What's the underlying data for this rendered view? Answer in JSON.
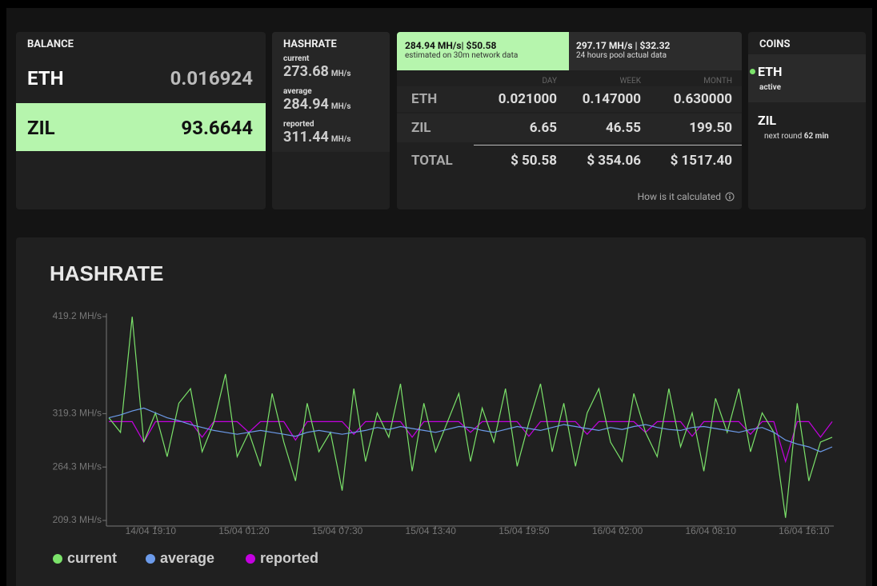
{
  "balance": {
    "title": "BALANCE",
    "rows": [
      {
        "coin": "ETH",
        "value": "0.016924"
      },
      {
        "coin": "ZIL",
        "value": "93.6644"
      }
    ]
  },
  "hashrate": {
    "title": "HASHRATE",
    "items": [
      {
        "label": "current",
        "value": "273.68",
        "unit": "MH/s"
      },
      {
        "label": "average",
        "value": "284.94",
        "unit": "MH/s"
      },
      {
        "label": "reported",
        "value": "311.44",
        "unit": "MH/s"
      }
    ]
  },
  "earnings": {
    "tabs": [
      {
        "title": "284.94 MH/s| $50.58",
        "subtitle": "estimated on 30m network data"
      },
      {
        "title": "297.17 MH/s | $32.32",
        "subtitle": "24 hours pool actual data"
      }
    ],
    "columns": [
      "DAY",
      "WEEK",
      "MONTH"
    ],
    "rows": [
      [
        "ETH",
        "0.021000",
        "0.147000",
        "0.630000"
      ],
      [
        "ZIL",
        "6.65",
        "46.55",
        "199.50"
      ],
      [
        "TOTAL",
        "$ 50.58",
        "$ 354.06",
        "$ 1517.40"
      ]
    ],
    "note": "How is it calculated"
  },
  "coins": {
    "title": "COINS",
    "items": [
      {
        "name": "ETH",
        "status": "active"
      },
      {
        "name": "ZIL",
        "status": "next round",
        "eta": "62 min"
      }
    ]
  },
  "chart_data": {
    "type": "line",
    "title": "HASHRATE",
    "categories": [
      null,
      null,
      null,
      null,
      "14/04 19:10",
      null,
      null,
      null,
      null,
      null,
      null,
      null,
      "15/04 01:20",
      null,
      null,
      null,
      null,
      null,
      null,
      null,
      "15/04 07:30",
      null,
      null,
      null,
      null,
      null,
      null,
      null,
      "15/04 13:40",
      null,
      null,
      null,
      null,
      null,
      null,
      null,
      "15/04 19:50",
      null,
      null,
      null,
      null,
      null,
      null,
      null,
      "16/04 02:00",
      null,
      null,
      null,
      null,
      null,
      null,
      null,
      "16/04 08:10",
      null,
      null,
      null,
      null,
      null,
      null,
      null,
      "16/04 16:10",
      null,
      null
    ],
    "series": [
      {
        "name": "current",
        "color": "#7be26a",
        "values": [
          315,
          300,
          419,
          290,
          320,
          275,
          330,
          345,
          280,
          310,
          360,
          275,
          300,
          265,
          340,
          290,
          250,
          330,
          280,
          300,
          240,
          345,
          270,
          320,
          295,
          350,
          260,
          330,
          280,
          310,
          340,
          270,
          325,
          290,
          345,
          265,
          310,
          350,
          280,
          330,
          265,
          320,
          345,
          290,
          270,
          340,
          300,
          275,
          345,
          285,
          320,
          260,
          335,
          300,
          345,
          280,
          320,
          300,
          212,
          330,
          250,
          290,
          295
        ]
      },
      {
        "name": "average",
        "color": "#6c9bea",
        "values": [
          315,
          318,
          322,
          325,
          320,
          315,
          312,
          308,
          305,
          302,
          300,
          298,
          300,
          302,
          300,
          298,
          296,
          300,
          302,
          300,
          298,
          300,
          302,
          305,
          303,
          306,
          304,
          302,
          300,
          303,
          306,
          305,
          302,
          300,
          303,
          306,
          304,
          302,
          305,
          308,
          306,
          304,
          302,
          305,
          303,
          306,
          308,
          305,
          303,
          302,
          305,
          306,
          304,
          302,
          300,
          303,
          305,
          300,
          292,
          288,
          285,
          280,
          285
        ]
      },
      {
        "name": "reported",
        "color": "#c400e0",
        "values": [
          311,
          311,
          311,
          290,
          311,
          311,
          311,
          311,
          295,
          311,
          311,
          311,
          300,
          311,
          311,
          311,
          292,
          311,
          311,
          311,
          311,
          298,
          311,
          311,
          311,
          311,
          295,
          311,
          311,
          311,
          311,
          300,
          311,
          311,
          311,
          311,
          296,
          311,
          311,
          311,
          311,
          298,
          311,
          311,
          311,
          311,
          300,
          311,
          311,
          311,
          296,
          311,
          311,
          311,
          311,
          298,
          311,
          311,
          270,
          311,
          311,
          295,
          311
        ]
      }
    ],
    "ylim": [
      209.3,
      419.2
    ],
    "yticks": [
      {
        "value": 209.3,
        "label": "209.3 MH/s"
      },
      {
        "value": 264.3,
        "label": "264.3 MH/s"
      },
      {
        "value": 319.3,
        "label": "319.3 MH/s"
      },
      {
        "value": 419.2,
        "label": "419.2 MH/s"
      }
    ]
  }
}
